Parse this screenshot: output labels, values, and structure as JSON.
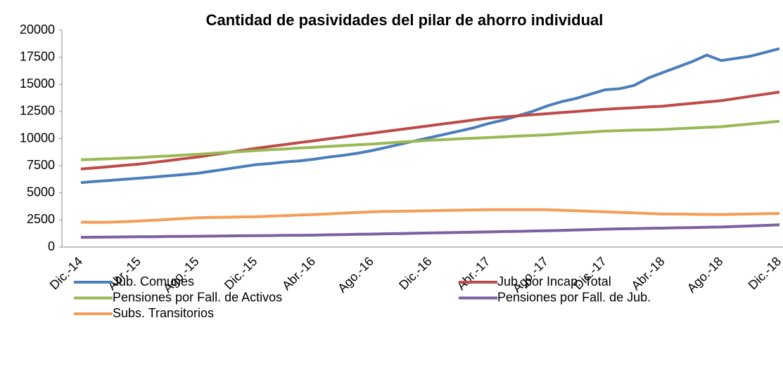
{
  "chart_data": {
    "type": "line",
    "title": "Cantidad de pasividades del pilar de ahorro individual",
    "categories": [
      "Dic.-14",
      null,
      null,
      null,
      "Abr.-15",
      null,
      null,
      null,
      "Ago.-15",
      null,
      null,
      null,
      "Dic.-15",
      null,
      null,
      null,
      "Abr.-16",
      null,
      null,
      null,
      "Ago.-16",
      null,
      null,
      null,
      "Dic.-16",
      null,
      null,
      null,
      "Abr.-17",
      null,
      null,
      null,
      "Ago.-17",
      null,
      null,
      null,
      "Dic.-17",
      null,
      null,
      null,
      "Abr.-18",
      null,
      null,
      null,
      "Ago.-18",
      null,
      null,
      null,
      "Dic.-18"
    ],
    "series": [
      {
        "name": "Jub. Comunes",
        "color": "#4a7ebb",
        "values": [
          5950,
          6050,
          6150,
          6250,
          6350,
          6450,
          6570,
          6680,
          6800,
          7000,
          7200,
          7400,
          7600,
          7700,
          7850,
          7950,
          8100,
          8300,
          8450,
          8650,
          8900,
          9200,
          9500,
          9800,
          10100,
          10400,
          10700,
          11000,
          11400,
          11700,
          12100,
          12500,
          13000,
          13400,
          13700,
          14100,
          14500,
          14600,
          14900,
          15600,
          16100,
          16600,
          17100,
          17700,
          17200,
          17400,
          17600,
          17950,
          18300
        ]
      },
      {
        "name": "Jub. por Incap. Total",
        "color": "#be4b48",
        "values": [
          7200,
          7310,
          7420,
          7540,
          7650,
          7810,
          7970,
          8140,
          8300,
          8500,
          8700,
          8900,
          9100,
          9280,
          9450,
          9630,
          9800,
          9980,
          10150,
          10330,
          10500,
          10680,
          10850,
          11030,
          11200,
          11380,
          11550,
          11730,
          11900,
          12000,
          12100,
          12200,
          12300,
          12400,
          12500,
          12600,
          12700,
          12780,
          12850,
          12930,
          13000,
          13130,
          13250,
          13380,
          13500,
          13700,
          13900,
          14100,
          14300
        ]
      },
      {
        "name": "Pensiones por Fall. de Activos",
        "color": "#98b954",
        "values": [
          8050,
          8100,
          8150,
          8200,
          8250,
          8330,
          8400,
          8480,
          8550,
          8640,
          8730,
          8810,
          8900,
          8980,
          9050,
          9130,
          9200,
          9280,
          9350,
          9430,
          9500,
          9590,
          9680,
          9760,
          9850,
          9910,
          9980,
          10040,
          10100,
          10160,
          10230,
          10290,
          10350,
          10440,
          10530,
          10610,
          10700,
          10740,
          10780,
          10810,
          10850,
          10910,
          10980,
          11040,
          11100,
          11230,
          11350,
          11480,
          11600
        ]
      },
      {
        "name": "Pensiones por Fall. de Jub.",
        "color": "#7d60a0",
        "values": [
          900,
          910,
          920,
          940,
          950,
          960,
          980,
          990,
          1000,
          1010,
          1030,
          1040,
          1050,
          1060,
          1080,
          1090,
          1100,
          1130,
          1150,
          1180,
          1200,
          1230,
          1250,
          1280,
          1300,
          1330,
          1350,
          1380,
          1400,
          1430,
          1450,
          1480,
          1500,
          1540,
          1580,
          1610,
          1650,
          1680,
          1700,
          1730,
          1750,
          1780,
          1800,
          1830,
          1850,
          1900,
          1950,
          2000,
          2050
        ]
      },
      {
        "name": "Subs. Transitorios",
        "color": "#f59d56",
        "values": [
          2300,
          2280,
          2300,
          2350,
          2400,
          2480,
          2550,
          2630,
          2700,
          2730,
          2750,
          2780,
          2800,
          2850,
          2900,
          2950,
          3000,
          3060,
          3130,
          3190,
          3250,
          3280,
          3300,
          3330,
          3350,
          3380,
          3400,
          3430,
          3450,
          3450,
          3450,
          3450,
          3450,
          3400,
          3350,
          3300,
          3250,
          3200,
          3150,
          3100,
          3050,
          3040,
          3030,
          3010,
          3000,
          3030,
          3050,
          3080,
          3100
        ]
      }
    ],
    "ylim": [
      0,
      20000
    ],
    "yticks": [
      0,
      2500,
      5000,
      7500,
      10000,
      12500,
      15000,
      17500,
      20000
    ],
    "grid": false
  }
}
